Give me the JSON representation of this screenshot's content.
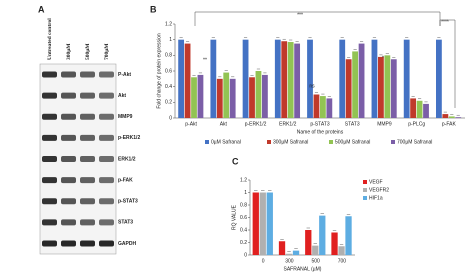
{
  "panels": {
    "a": "A",
    "b": "B",
    "c": "C"
  },
  "blot": {
    "columns": [
      "Untreated control",
      "300µM",
      "500µM",
      "700µM"
    ],
    "rows": [
      "P-Akt",
      "Akt",
      "MMP9",
      "p-ERK1/2",
      "ERK1/2",
      "p-FAK",
      "p-STAT3",
      "STAT3",
      "GAPDH"
    ]
  },
  "chart_data": [
    {
      "type": "bar",
      "x_label": "Name of the proteins",
      "y_label": "Fold change of protein expression",
      "categories": [
        "p-Akt",
        "Akt",
        "p-ERK1/2",
        "ERK1/2",
        "p-STAT3",
        "STAT3",
        "MMP9",
        "p-PLCg",
        "p-FAK"
      ],
      "series": [
        {
          "name": "0µM Safranal",
          "color": "#4472c4",
          "values": [
            1,
            1,
            1,
            1,
            1,
            1,
            1,
            1,
            1
          ]
        },
        {
          "name": "300µM Safranal",
          "color": "#c0392b",
          "values": [
            0.95,
            0.5,
            0.52,
            0.98,
            0.3,
            0.75,
            0.78,
            0.25,
            0.05
          ]
        },
        {
          "name": "500µM Safranal",
          "color": "#92c353",
          "values": [
            0.52,
            0.58,
            0.6,
            0.97,
            0.28,
            0.85,
            0.8,
            0.22,
            0.02
          ]
        },
        {
          "name": "700µM Safranal",
          "color": "#7b5ea7",
          "values": [
            0.55,
            0.5,
            0.55,
            0.95,
            0.25,
            0.95,
            0.75,
            0.18,
            0.01
          ]
        }
      ],
      "ylim": [
        0,
        1.2
      ],
      "yticks": [
        0,
        0.2,
        0.4,
        0.6,
        0.8,
        1,
        1.2
      ],
      "legend": "bottom",
      "annotations": [
        "***",
        "****",
        "**",
        "ns",
        "*"
      ]
    },
    {
      "type": "bar",
      "x_label": "SAFRANAL (µM)",
      "y_label": "RQ VALUE",
      "categories": [
        "0",
        "300",
        "500",
        "700"
      ],
      "series": [
        {
          "name": "VEGF",
          "color": "#e02020",
          "values": [
            1,
            0.22,
            0.4,
            0.36
          ]
        },
        {
          "name": "VEGFR2",
          "color": "#b0b0b0",
          "values": [
            1,
            0.02,
            0.15,
            0.14
          ]
        },
        {
          "name": "HIF1a",
          "color": "#5dade2",
          "values": [
            1,
            0.07,
            0.63,
            0.62
          ]
        }
      ],
      "ylim": [
        0,
        1.2
      ],
      "yticks": [
        0,
        0.2,
        0.4,
        0.6,
        0.8,
        1,
        1.2
      ],
      "legend": "right"
    }
  ]
}
